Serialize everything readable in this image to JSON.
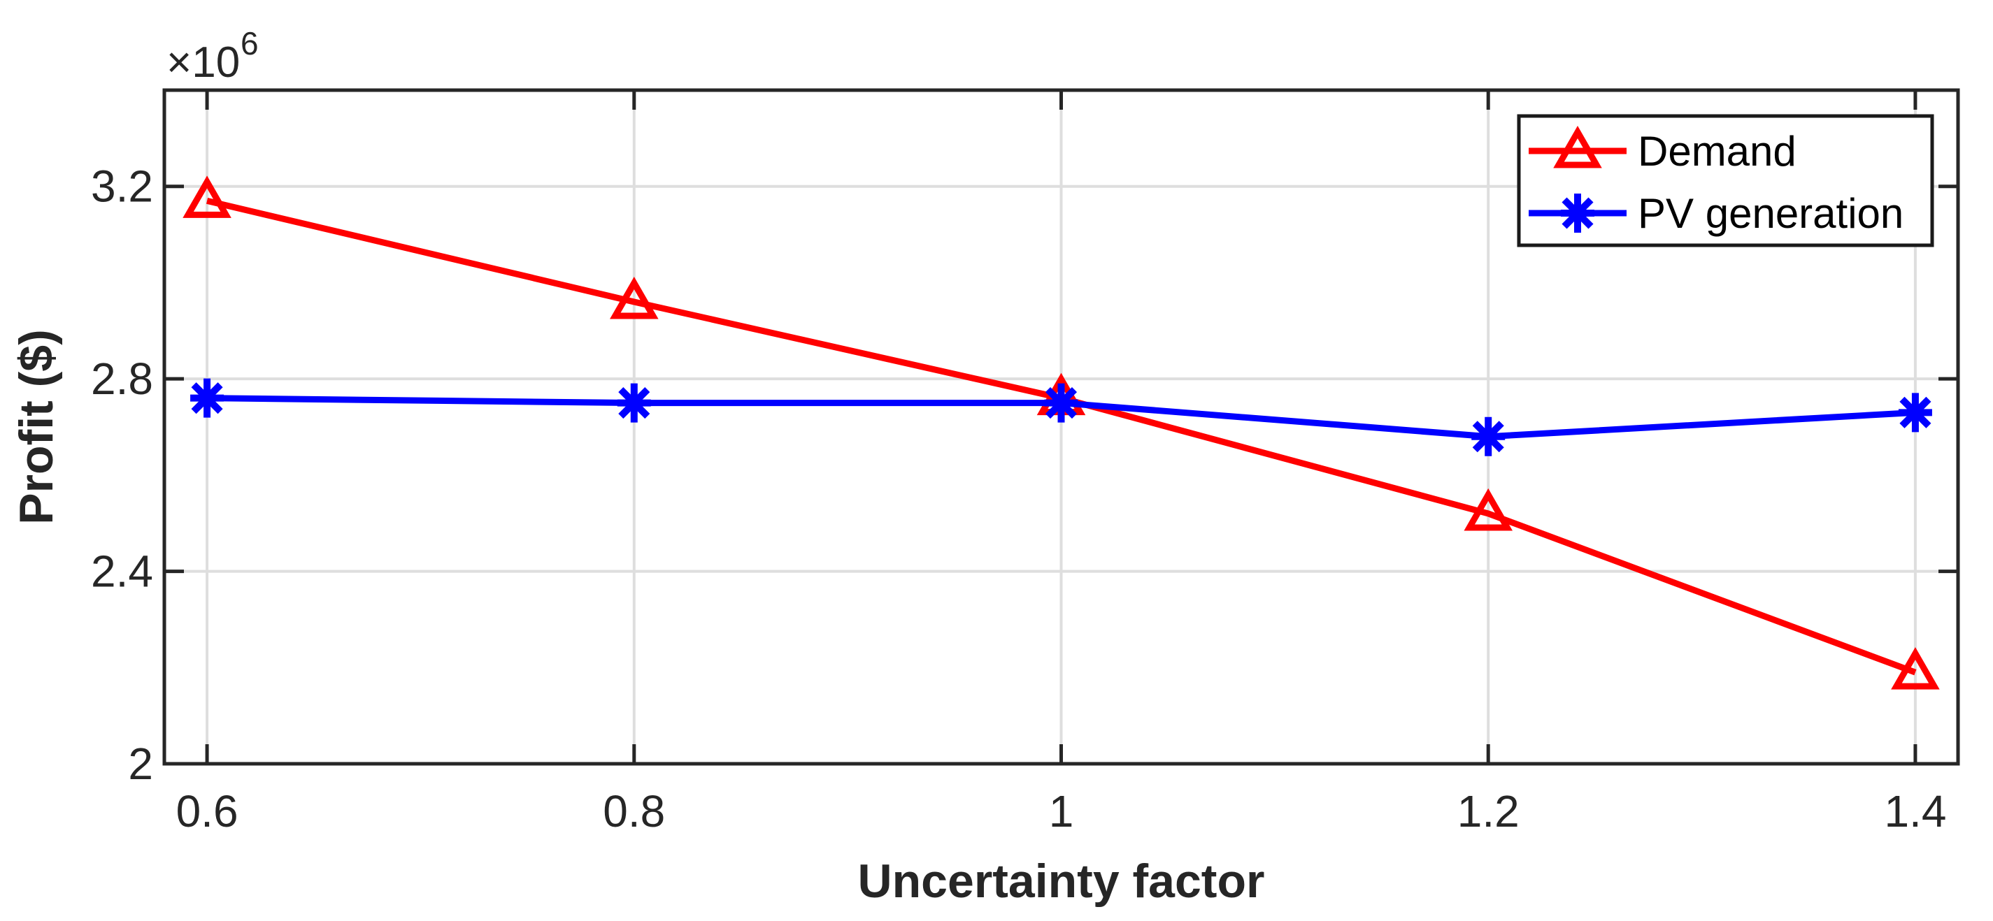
{
  "chart_data": {
    "type": "line",
    "title": "",
    "xlabel": "Uncertainty factor",
    "ylabel": "Profit ($)",
    "y_exponent_label": "×10",
    "y_exponent_power": "6",
    "values_scale_factor": 1000000,
    "x": [
      0.6,
      0.8,
      1.0,
      1.2,
      1.4
    ],
    "series": [
      {
        "name": "Demand",
        "color": "#ff0000",
        "marker": "triangle",
        "values": [
          3.17,
          2.96,
          2.76,
          2.52,
          2.19
        ]
      },
      {
        "name": "PV generation",
        "color": "#0000ff",
        "marker": "asterisk",
        "values": [
          2.76,
          2.75,
          2.75,
          2.68,
          2.73
        ]
      }
    ],
    "xlim": [
      0.58,
      1.42
    ],
    "ylim": [
      2.0,
      3.4
    ],
    "xticks": [
      0.6,
      0.8,
      1.0,
      1.2,
      1.4
    ],
    "xtick_labels": [
      "0.6",
      "0.8",
      "1",
      "1.2",
      "1.4"
    ],
    "yticks": [
      2.0,
      2.4,
      2.8,
      3.2
    ],
    "ytick_labels": [
      "2",
      "2.4",
      "2.8",
      "3.2"
    ],
    "grid": true,
    "legend_position": "top-right",
    "colors": {
      "axis": "#262626",
      "grid": "#dedede",
      "background": "#ffffff",
      "legend_border": "#1a1a1a",
      "legend_background": "#ffffff"
    }
  }
}
